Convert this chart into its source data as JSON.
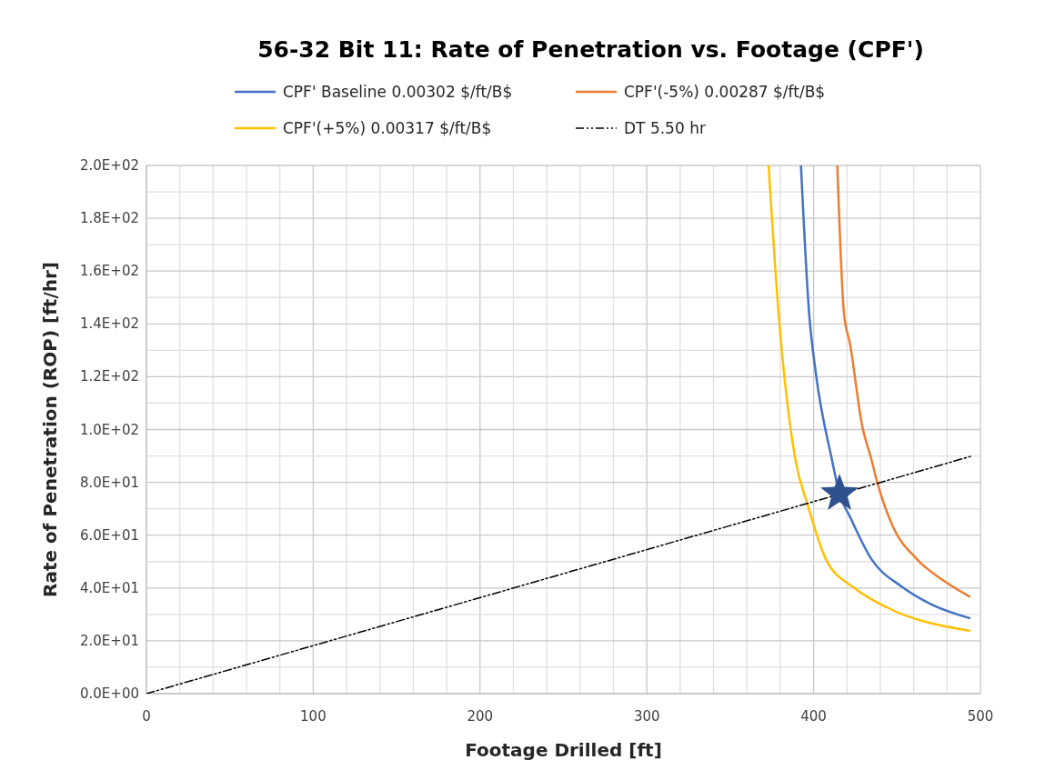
{
  "chart_data": {
    "type": "line",
    "title": "56-32 Bit 11: Rate of Penetration vs. Footage (CPF')",
    "xlabel": "Footage Drilled [ft]",
    "ylabel": "Rate of Penetration (ROP) [ft/hr]",
    "xlim": [
      0,
      500
    ],
    "ylim": [
      0,
      200
    ],
    "xticks": [
      0,
      {
        "value": 20,
        "label": null
      },
      {
        "value": 40,
        "label": null
      },
      {
        "value": 60,
        "label": null
      },
      {
        "value": 80,
        "label": null
      },
      100,
      {
        "value": 120,
        "label": null
      },
      {
        "value": 140,
        "label": null
      },
      {
        "value": 160,
        "label": null
      },
      {
        "value": 180,
        "label": null
      },
      200,
      {
        "value": 220,
        "label": null
      },
      {
        "value": 240,
        "label": null
      },
      {
        "value": 260,
        "label": null
      },
      {
        "value": 280,
        "label": null
      },
      300,
      {
        "value": 320,
        "label": null
      },
      {
        "value": 340,
        "label": null
      },
      {
        "value": 360,
        "label": null
      },
      {
        "value": 380,
        "label": null
      },
      400,
      {
        "value": 420,
        "label": null
      },
      {
        "value": 440,
        "label": null
      },
      {
        "value": 460,
        "label": null
      },
      {
        "value": 480,
        "label": null
      },
      500
    ],
    "yticks": [
      {
        "value": 0,
        "label": "0.0E+00"
      },
      {
        "value": 10,
        "label": null
      },
      {
        "value": 20,
        "label": "2.0E+01"
      },
      {
        "value": 30,
        "label": null
      },
      {
        "value": 40,
        "label": "4.0E+01"
      },
      {
        "value": 50,
        "label": null
      },
      {
        "value": 60,
        "label": "6.0E+01"
      },
      {
        "value": 70,
        "label": null
      },
      {
        "value": 80,
        "label": "8.0E+01"
      },
      {
        "value": 90,
        "label": null
      },
      {
        "value": 100,
        "label": "1.0E+02"
      },
      {
        "value": 110,
        "label": null
      },
      {
        "value": 120,
        "label": "1.2E+02"
      },
      {
        "value": 130,
        "label": null
      },
      {
        "value": 140,
        "label": "1.4E+02"
      },
      {
        "value": 150,
        "label": null
      },
      {
        "value": 160,
        "label": "1.6E+02"
      },
      {
        "value": 170,
        "label": null
      },
      {
        "value": 180,
        "label": "1.8E+02"
      },
      {
        "value": 190,
        "label": null
      },
      {
        "value": 200,
        "label": "2.0E+02"
      }
    ],
    "grid": true,
    "legend": "top",
    "marker": "none",
    "line_style": "solid",
    "series": [
      {
        "name": "CPF' Baseline 0.00302 $/ft/B$",
        "color": "#4472c4",
        "x": [
          392.4,
          397.3,
          401.4,
          410.9,
          415.5,
          421.8,
          434.6,
          452.6,
          470.9,
          493.4
        ],
        "values": [
          200,
          144,
          121,
          88.8,
          75.7,
          67,
          51,
          40.6,
          33.7,
          28.6
        ]
      },
      {
        "name": "CPF'(-5%) 0.00287 $/ft/B$",
        "color": "#ed7d31",
        "x": [
          414.2,
          418.2,
          421.8,
          429.1,
          434.6,
          438.2,
          447.2,
          461.8,
          479.8,
          493.4
        ],
        "values": [
          200,
          144,
          132.5,
          101.5,
          88.8,
          79.9,
          63.7,
          51,
          42,
          36.8
        ]
      },
      {
        "name": "CPF'(+5%) 0.00317 $/ft/B$",
        "color": "#ffc000",
        "x": [
          373,
          379,
          389,
          396.4,
          407.3,
          425.3,
          443.8,
          493.4
        ],
        "values": [
          200,
          144,
          88.8,
          71.6,
          51,
          39.6,
          32.7,
          23.8
        ]
      },
      {
        "name": "DT 5.50 hr",
        "color": "#000000",
        "line_style": "dashed",
        "x": [
          0,
          494
        ],
        "values": [
          0,
          89.8
        ]
      },
      {
        "type": "scatter",
        "marker": "star",
        "color": "#2f528f",
        "x": [
          415.5
        ],
        "values": [
          75.7
        ]
      }
    ]
  }
}
